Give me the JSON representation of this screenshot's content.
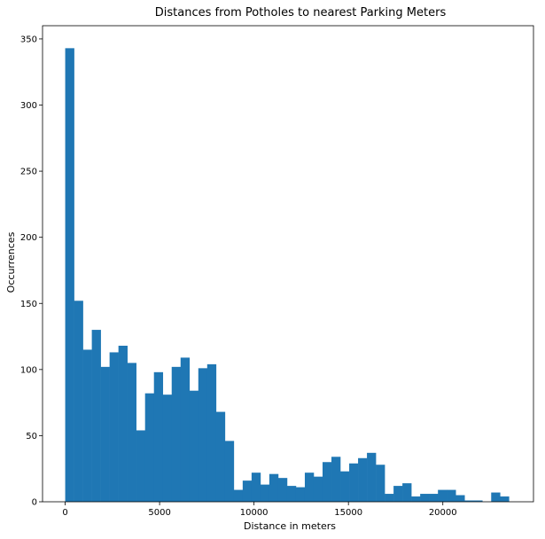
{
  "chart_data": {
    "type": "bar",
    "title": "Distances from Potholes to nearest Parking Meters",
    "xlabel": "Distance in meters",
    "ylabel": "Occurrences",
    "color": "#1f77b4",
    "xlim": [
      -1200,
      24800
    ],
    "ylim": [
      0,
      360
    ],
    "grid": false,
    "bin_edges": [
      0,
      470,
      940,
      1410,
      1880,
      2350,
      2820,
      3290,
      3760,
      4230,
      4700,
      5170,
      5640,
      6110,
      6580,
      7050,
      7520,
      7990,
      8460,
      8930,
      9400,
      9870,
      10340,
      10810,
      11280,
      11750,
      12220,
      12690,
      13160,
      13630,
      14100,
      14570,
      15040,
      15510,
      15980,
      16450,
      16920,
      17390,
      17860,
      18330,
      18800,
      19270,
      19740,
      20210,
      20680,
      21150,
      21620,
      22090,
      22560,
      23030,
      23500
    ],
    "values": [
      343,
      152,
      115,
      130,
      102,
      113,
      118,
      105,
      54,
      82,
      98,
      81,
      102,
      109,
      84,
      101,
      104,
      68,
      46,
      9,
      16,
      22,
      13,
      21,
      18,
      12,
      11,
      22,
      19,
      30,
      34,
      23,
      29,
      33,
      37,
      28,
      6,
      12,
      14,
      4,
      6,
      6,
      9,
      9,
      5,
      1,
      1,
      0,
      7,
      4
    ],
    "x_ticks": [
      0,
      5000,
      10000,
      15000,
      20000
    ],
    "x_tick_labels": [
      "0",
      "5000",
      "10000",
      "15000",
      "20000"
    ],
    "y_ticks": [
      0,
      50,
      100,
      150,
      200,
      250,
      300,
      350
    ],
    "y_tick_labels": [
      "0",
      "50",
      "100",
      "150",
      "200",
      "250",
      "300",
      "350"
    ]
  }
}
